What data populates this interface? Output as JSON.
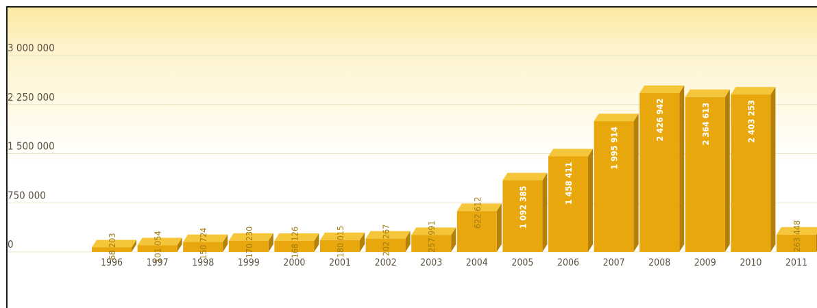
{
  "chart_data": {
    "type": "bar",
    "title": "",
    "xlabel": "",
    "ylabel": "",
    "ylim": [
      0,
      3000000
    ],
    "yticks": [
      "0",
      "750 000",
      "1 500 000",
      "2 250 000",
      "3 000 000"
    ],
    "ytick_values": [
      0,
      750000,
      1500000,
      2250000,
      3000000
    ],
    "grid": true,
    "categories": [
      "1996",
      "1997",
      "1998",
      "1999",
      "2000",
      "2001",
      "2002",
      "2003",
      "2004",
      "2005",
      "2006",
      "2007",
      "2008",
      "2009",
      "2010",
      "2011"
    ],
    "values": [
      68203,
      101054,
      150724,
      170230,
      168126,
      180015,
      202267,
      257991,
      622612,
      1092385,
      1458411,
      1995914,
      2426942,
      2364613,
      2403253,
      263448
    ],
    "value_labels": [
      "68 203",
      "101 054",
      "150 724",
      "170 230",
      "168 126",
      "180 015",
      "202 267",
      "257 991",
      "622 612",
      "1 092 385",
      "1 458 411",
      "1 995 914",
      "2 426 942",
      "2 364 613",
      "2 403 253",
      "263 448"
    ],
    "colors": {
      "bar_front": "#e7a70d",
      "bar_top": "#f6c63a",
      "bar_side": "#b4800a",
      "grid": "#ece3c4",
      "label_outside": "#a27c12",
      "label_inside": "#ffffff"
    }
  }
}
